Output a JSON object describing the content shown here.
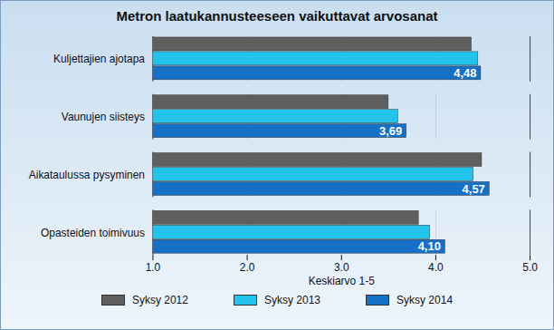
{
  "chart_data": {
    "type": "bar",
    "orientation": "horizontal",
    "title": "Metron laatukannusteeseen vaikuttavat arvosanat",
    "x_label": "Keskiarvo 1-5",
    "categories": [
      "Kuljettajien ajotapa",
      "Vaunujen siisteys",
      "Aikataulussa pysyminen",
      "Opasteiden toimivuus"
    ],
    "series": [
      {
        "name": "Syksy 2012",
        "color": "#5f5f5f",
        "values": [
          4.38,
          3.5,
          4.49,
          3.82
        ]
      },
      {
        "name": "Syksy 2013",
        "color": "#22c4ec",
        "values": [
          4.45,
          3.6,
          4.4,
          3.94
        ]
      },
      {
        "name": "Syksy 2014",
        "color": "#1670c6",
        "values": [
          4.48,
          3.69,
          4.57,
          4.1
        ],
        "value_labels": [
          "4,48",
          "3,69",
          "4,57",
          "4,10"
        ]
      }
    ],
    "xlim": [
      1,
      5
    ],
    "xticks": [
      1,
      2,
      3,
      4,
      5
    ],
    "grid": true,
    "data_labels": true,
    "legend": "bottom"
  }
}
